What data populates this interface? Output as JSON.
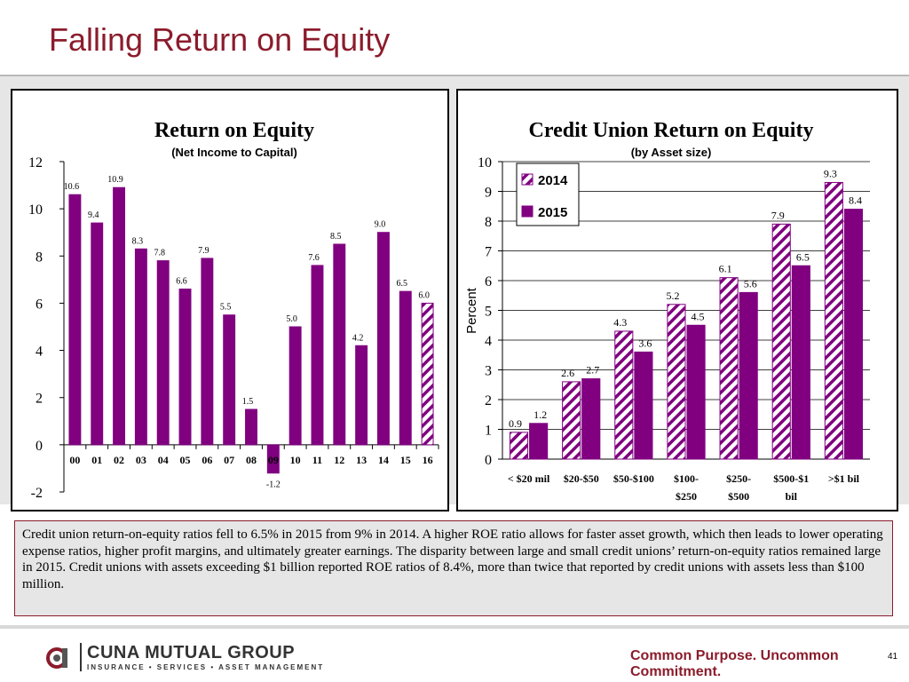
{
  "slide": {
    "title": "Falling Return on Equity",
    "caption": "Credit union return-on-equity ratios fell to 6.5% in 2015 from 9% in 2014.  A higher ROE ratio allows for faster asset growth, which then leads to lower operating expense ratios, higher profit margins, and ultimately greater earnings. The disparity between large and small credit unions’ return-on-equity ratios remained large in 2015. Credit unions with assets exceeding $1 billion reported ROE ratios of 8.4%, more than twice that reported by credit unions with assets less than $100 million.",
    "tagline": "Common Purpose. Uncommon Commitment.",
    "page_number": "41",
    "brand_name": "CUNA MUTUAL GROUP",
    "brand_sub": "INSURANCE • SERVICES • ASSET MANAGEMENT",
    "colors": {
      "accent": "#8b1c2c",
      "bar": "#800080"
    }
  },
  "chart_data": [
    {
      "type": "bar",
      "title": "Return on Equity",
      "subtitle": "(Net Income to Capital)",
      "xlabel": "",
      "ylabel": "",
      "ylim": [
        -2,
        12
      ],
      "yticks": [
        -2,
        0,
        2,
        4,
        6,
        8,
        10,
        12
      ],
      "grid": false,
      "categories": [
        "00",
        "01",
        "02",
        "03",
        "04",
        "05",
        "06",
        "07",
        "08",
        "09",
        "10",
        "11",
        "12",
        "13",
        "14",
        "15",
        "16"
      ],
      "values": [
        10.6,
        9.4,
        10.9,
        8.3,
        7.8,
        6.6,
        7.9,
        5.5,
        1.5,
        -1.2,
        5.0,
        7.6,
        8.5,
        4.2,
        9.0,
        6.5,
        6.0
      ],
      "labels": [
        "10.6",
        "9.4",
        "10.9",
        "8.3",
        "7.8",
        "6.6",
        "7.9",
        "5.5",
        "1.5",
        "-1.2",
        "5.0",
        "7.6",
        "8.5",
        "4.2",
        "9.0",
        "6.5",
        "6.0"
      ],
      "last_bar_hatched": true
    },
    {
      "type": "bar",
      "title": "Credit Union Return on Equity",
      "subtitle": "(by Asset size)",
      "xlabel": "",
      "ylabel": "Percent",
      "ylim": [
        0,
        10
      ],
      "yticks": [
        0,
        1,
        2,
        3,
        4,
        5,
        6,
        7,
        8,
        9,
        10
      ],
      "grid": true,
      "legend": "top-left",
      "categories": [
        [
          "< $20 mil"
        ],
        [
          "$20-$50"
        ],
        [
          "$50-$100"
        ],
        [
          "$100-",
          "$250"
        ],
        [
          "$250-",
          "$500"
        ],
        [
          "$500-$1",
          "bil"
        ],
        [
          ">$1 bil"
        ]
      ],
      "series": [
        {
          "name": "2014",
          "values": [
            0.9,
            2.6,
            4.3,
            5.2,
            6.1,
            7.9,
            9.3
          ],
          "labels": [
            "0.9",
            "2.6",
            "4.3",
            "5.2",
            "6.1",
            "7.9",
            "9.3"
          ],
          "pattern": "hatched"
        },
        {
          "name": "2015",
          "values": [
            1.2,
            2.7,
            3.6,
            4.5,
            5.6,
            6.5,
            8.4
          ],
          "labels": [
            "1.2",
            "2.7",
            "3.6",
            "4.5",
            "5.6",
            "6.5",
            "8.4"
          ],
          "pattern": "solid"
        }
      ]
    }
  ]
}
